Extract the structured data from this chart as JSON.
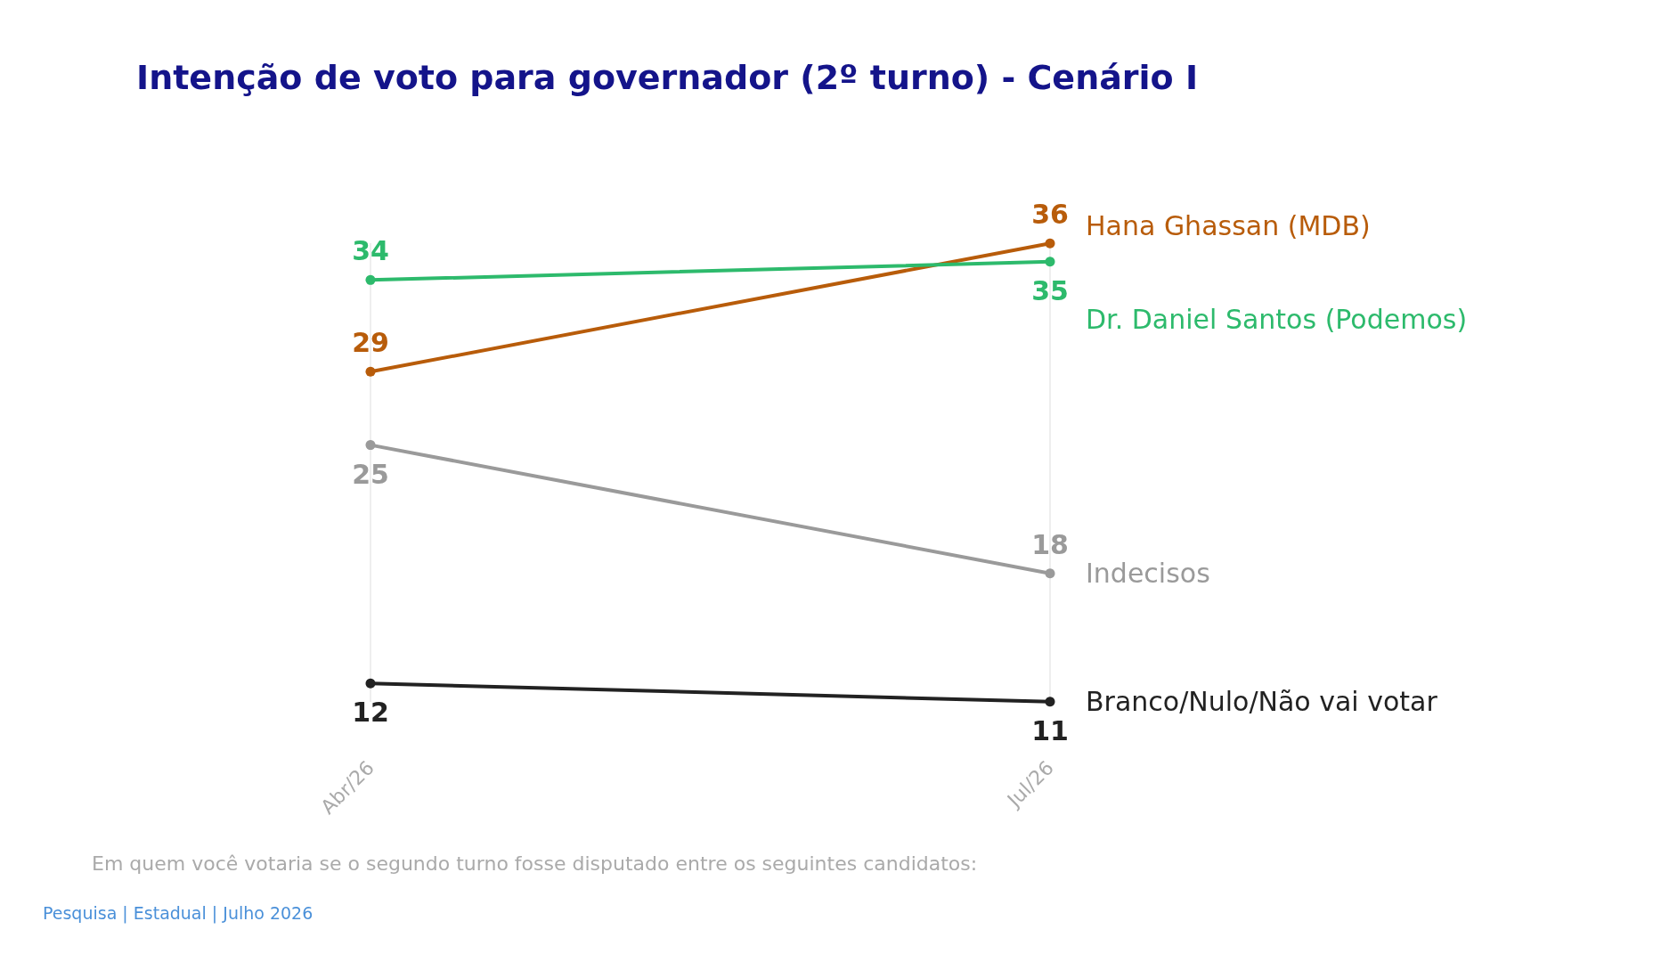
{
  "chart_data": {
    "type": "line",
    "title": "Intenção de voto para governador (2º turno) - Cenário I",
    "categories": [
      "Abr/26",
      "Jul/26"
    ],
    "series": [
      {
        "name": "Hana Ghassan (MDB)",
        "color": "#b85c0a",
        "values": [
          29,
          36
        ]
      },
      {
        "name": "Dr. Daniel Santos (Podemos)",
        "color": "#2dba6c",
        "values": [
          34,
          35
        ]
      },
      {
        "name": "Indecisos",
        "color": "#9a9a9a",
        "values": [
          25,
          18
        ]
      },
      {
        "name": "Branco/Nulo/Não vai votar",
        "color": "#222222",
        "values": [
          12,
          11
        ]
      }
    ],
    "data_labels": true,
    "legend": false,
    "grid": "x",
    "marker": "circle",
    "line_style": "solid",
    "annotations": [
      "Em quem você votaria se o segundo turno fosse disputado entre os seguintes candidatos:",
      "Pesquisa | Estadual | Julho 2026"
    ]
  }
}
